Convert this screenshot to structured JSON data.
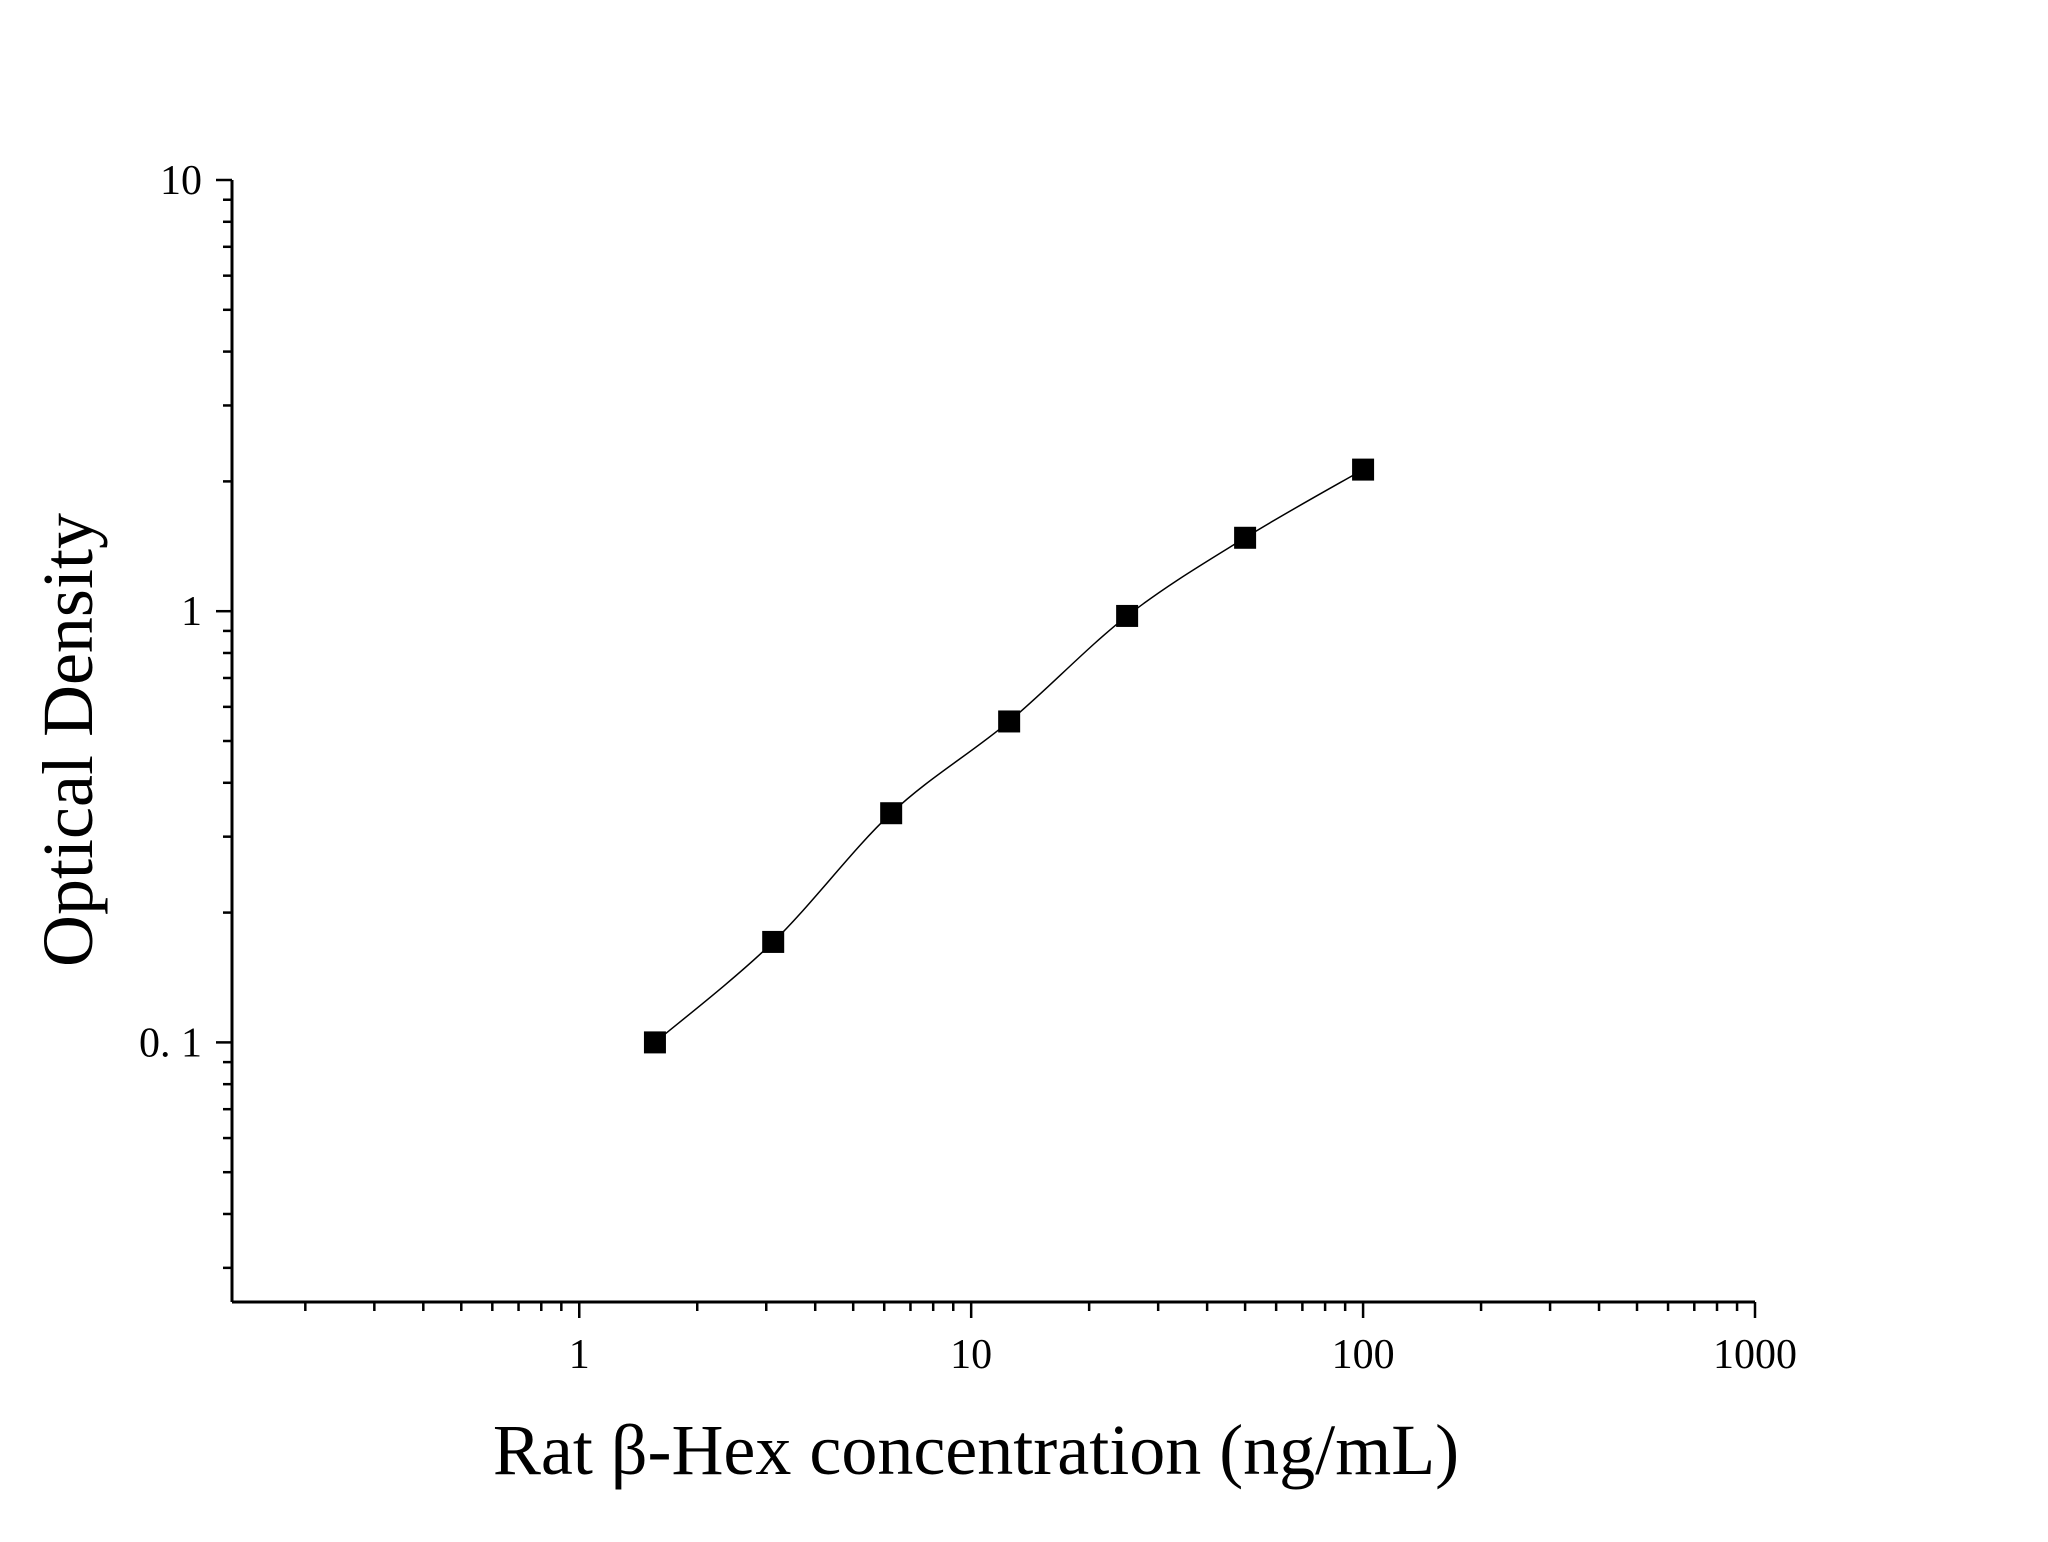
{
  "chart_data": {
    "type": "scatter",
    "title": "",
    "xlabel": "Rat β-Hex concentration (ng/mL)",
    "ylabel": "Optical Density",
    "x_scale": "log",
    "y_scale": "log",
    "xlim": [
      0.13,
      1000
    ],
    "ylim": [
      0.025,
      10
    ],
    "x_ticks": [
      {
        "value": 1,
        "label": "1"
      },
      {
        "value": 10,
        "label": "10"
      },
      {
        "value": 100,
        "label": "100"
      },
      {
        "value": 1000,
        "label": "1000"
      }
    ],
    "y_ticks": [
      {
        "value": 0.1,
        "label": "0. 1"
      },
      {
        "value": 1,
        "label": "1"
      },
      {
        "value": 10,
        "label": "10"
      }
    ],
    "grid": false,
    "legend": "none",
    "marker": "square",
    "fit_curve": true,
    "colors": {
      "marker": "#000000",
      "line": "#000000",
      "axis": "#000000"
    },
    "series": [
      {
        "x": [
          1.56,
          3.125,
          6.25,
          12.5,
          25,
          50,
          100
        ],
        "y": [
          0.1,
          0.171,
          0.34,
          0.555,
          0.975,
          1.48,
          2.13
        ]
      }
    ]
  }
}
